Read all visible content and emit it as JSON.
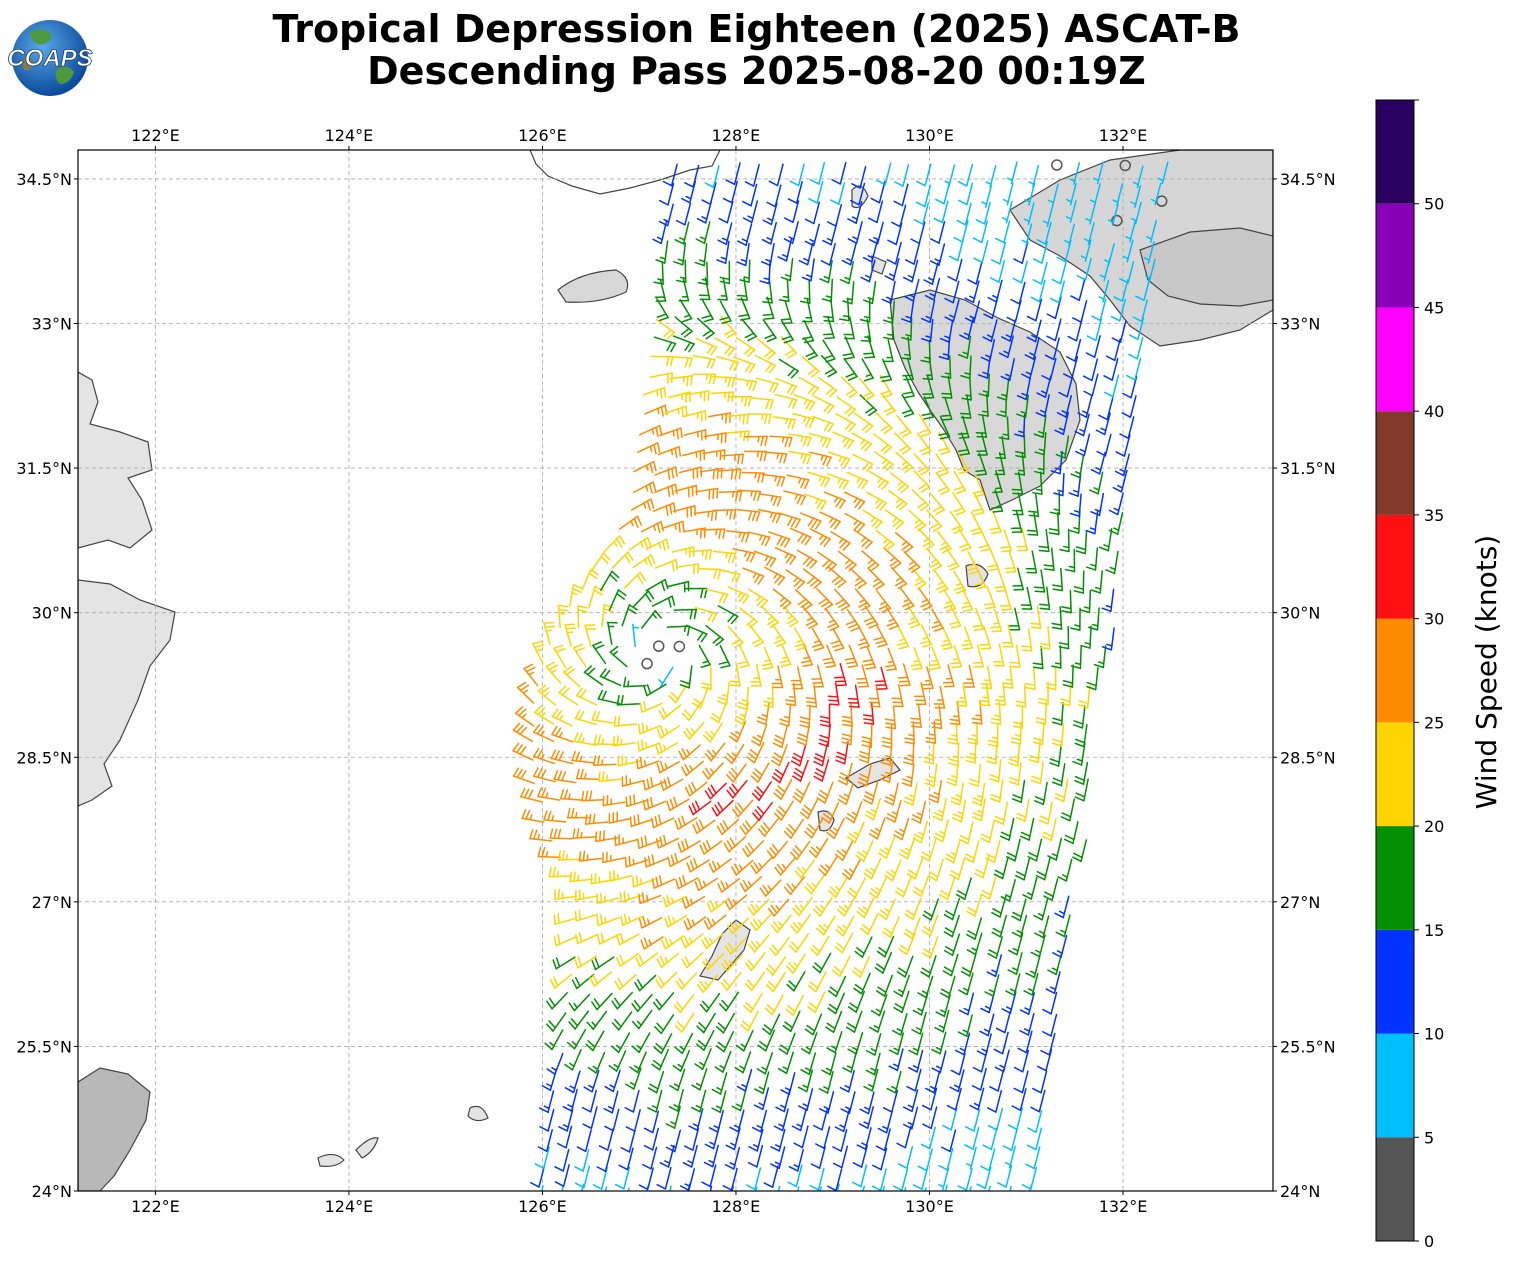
{
  "header": {
    "title_line1": "Tropical Depression Eighteen (2025) ASCAT-B",
    "title_line2": "Descending Pass 2025-08-20 00:19Z",
    "logo_text": "COAPS"
  },
  "map": {
    "lon_range": [
      121.2,
      133.55
    ],
    "lat_range": [
      24.0,
      34.8
    ],
    "lon_ticks": [
      {
        "value": 122,
        "label": "122°E"
      },
      {
        "value": 124,
        "label": "124°E"
      },
      {
        "value": 126,
        "label": "126°E"
      },
      {
        "value": 128,
        "label": "128°E"
      },
      {
        "value": 130,
        "label": "130°E"
      },
      {
        "value": 132,
        "label": "132°E"
      }
    ],
    "lat_ticks": [
      {
        "value": 24.0,
        "label": "24°N"
      },
      {
        "value": 25.5,
        "label": "25.5°N"
      },
      {
        "value": 27.0,
        "label": "27°N"
      },
      {
        "value": 28.5,
        "label": "28.5°N"
      },
      {
        "value": 30.0,
        "label": "30°N"
      },
      {
        "value": 31.5,
        "label": "31.5°N"
      },
      {
        "value": 33.0,
        "label": "33°N"
      },
      {
        "value": 34.5,
        "label": "34.5°N"
      }
    ],
    "gridlines": true,
    "storm_center": {
      "lon": 127.2,
      "lat": 29.6
    },
    "coast_color": "#444444"
  },
  "colorbar": {
    "label": "Wind Speed (knots)",
    "bins": [
      {
        "min": 0,
        "max": 5,
        "color": "#555555"
      },
      {
        "min": 5,
        "max": 10,
        "color": "#00bfff"
      },
      {
        "min": 10,
        "max": 15,
        "color": "#0033ff"
      },
      {
        "min": 15,
        "max": 20,
        "color": "#009000"
      },
      {
        "min": 20,
        "max": 25,
        "color": "#ffd400"
      },
      {
        "min": 25,
        "max": 30,
        "color": "#ff8c00"
      },
      {
        "min": 30,
        "max": 35,
        "color": "#ff1010"
      },
      {
        "min": 35,
        "max": 40,
        "color": "#7f3a2a"
      },
      {
        "min": 40,
        "max": 45,
        "color": "#ff00ff"
      },
      {
        "min": 45,
        "max": 50,
        "color": "#8800b8"
      },
      {
        "min": 50,
        "max": 55,
        "color": "#2a0060"
      }
    ],
    "tick_labels": [
      "0",
      "5",
      "10",
      "15",
      "20",
      "25",
      "30",
      "35",
      "40",
      "45",
      "50"
    ]
  }
}
